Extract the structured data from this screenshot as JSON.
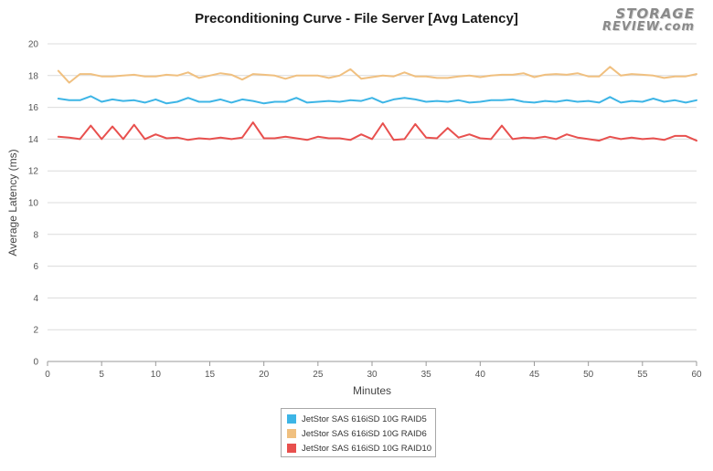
{
  "chart_data": {
    "type": "line",
    "title": "Preconditioning Curve - File Server [Avg Latency]",
    "xlabel": "Minutes",
    "ylabel": "Average Latency (ms)",
    "xlim": [
      0,
      60
    ],
    "ylim": [
      0,
      20
    ],
    "x_ticks": [
      0,
      5,
      10,
      15,
      20,
      25,
      30,
      35,
      40,
      45,
      50,
      55,
      60
    ],
    "y_ticks": [
      0,
      2,
      4,
      6,
      8,
      10,
      12,
      14,
      16,
      18,
      20
    ],
    "grid": "horizontal",
    "legend_position": "bottom",
    "x": [
      1,
      2,
      3,
      4,
      5,
      6,
      7,
      8,
      9,
      10,
      11,
      12,
      13,
      14,
      15,
      16,
      17,
      18,
      19,
      20,
      21,
      22,
      23,
      24,
      25,
      26,
      27,
      28,
      29,
      30,
      31,
      32,
      33,
      34,
      35,
      36,
      37,
      38,
      39,
      40,
      41,
      42,
      43,
      44,
      45,
      46,
      47,
      48,
      49,
      50,
      51,
      52,
      53,
      54,
      55,
      56,
      57,
      58,
      59,
      60
    ],
    "series": [
      {
        "name": "JetStor SAS 616iSD 10G RAID5",
        "color": "#3db5e6",
        "values": [
          16.55,
          16.45,
          16.45,
          16.7,
          16.35,
          16.5,
          16.4,
          16.45,
          16.3,
          16.5,
          16.25,
          16.35,
          16.6,
          16.35,
          16.35,
          16.5,
          16.3,
          16.5,
          16.4,
          16.25,
          16.35,
          16.35,
          16.6,
          16.3,
          16.35,
          16.4,
          16.35,
          16.45,
          16.4,
          16.6,
          16.3,
          16.5,
          16.6,
          16.5,
          16.35,
          16.4,
          16.35,
          16.45,
          16.3,
          16.35,
          16.45,
          16.45,
          16.5,
          16.35,
          16.3,
          16.4,
          16.35,
          16.45,
          16.35,
          16.4,
          16.3,
          16.65,
          16.3,
          16.4,
          16.35,
          16.55,
          16.35,
          16.45,
          16.3,
          16.45
        ]
      },
      {
        "name": "JetStor SAS 616iSD 10G RAID6",
        "color": "#f0c080",
        "values": [
          18.3,
          17.55,
          18.1,
          18.1,
          17.95,
          17.95,
          18.0,
          18.05,
          17.95,
          17.95,
          18.05,
          18.0,
          18.2,
          17.85,
          18.0,
          18.15,
          18.05,
          17.75,
          18.1,
          18.05,
          18.0,
          17.8,
          18.0,
          18.0,
          18.0,
          17.85,
          18.0,
          18.4,
          17.8,
          17.9,
          18.0,
          17.95,
          18.2,
          17.95,
          17.95,
          17.85,
          17.85,
          17.95,
          18.0,
          17.9,
          18.0,
          18.05,
          18.05,
          18.15,
          17.9,
          18.05,
          18.1,
          18.05,
          18.15,
          17.95,
          17.95,
          18.55,
          18.0,
          18.1,
          18.05,
          18.0,
          17.85,
          17.95,
          17.95,
          18.1
        ]
      },
      {
        "name": "JetStor SAS 616iSD 10G RAID10",
        "color": "#e8504e",
        "values": [
          14.15,
          14.1,
          14.0,
          14.85,
          14.0,
          14.8,
          14.0,
          14.9,
          14.0,
          14.3,
          14.05,
          14.1,
          13.95,
          14.05,
          14.0,
          14.1,
          14.0,
          14.1,
          15.05,
          14.05,
          14.05,
          14.15,
          14.05,
          13.95,
          14.15,
          14.05,
          14.05,
          13.95,
          14.3,
          14.0,
          15.0,
          13.95,
          14.0,
          14.95,
          14.1,
          14.05,
          14.7,
          14.1,
          14.3,
          14.05,
          14.0,
          14.85,
          14.0,
          14.1,
          14.05,
          14.15,
          14.0,
          14.3,
          14.1,
          14.0,
          13.9,
          14.15,
          14.0,
          14.1,
          14.0,
          14.05,
          13.95,
          14.2,
          14.2,
          13.9
        ]
      }
    ]
  },
  "logo": {
    "line1": "STORAGE",
    "line2": "REVIEW.com"
  }
}
